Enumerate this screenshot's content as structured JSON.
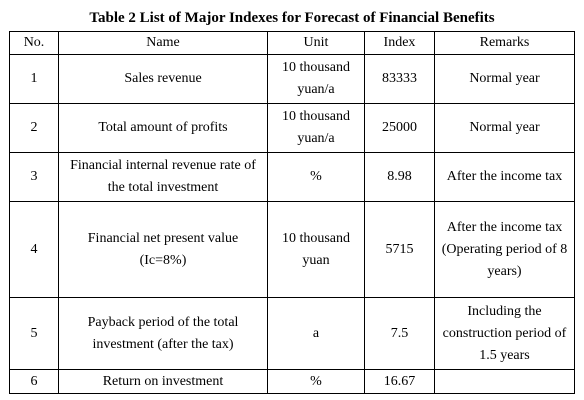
{
  "title": "Table 2 List of Major Indexes for Forecast of Financial Benefits",
  "table": {
    "headers": {
      "no": "No.",
      "name": "Name",
      "unit": "Unit",
      "index": "Index",
      "remarks": "Remarks"
    },
    "rows": [
      {
        "no": "1",
        "name": "Sales revenue",
        "unit": "10 thousand yuan/a",
        "index": "83333",
        "remarks": "Normal year"
      },
      {
        "no": "2",
        "name": "Total amount of profits",
        "unit": "10 thousand yuan/a",
        "index": "25000",
        "remarks": "Normal year"
      },
      {
        "no": "3",
        "name": "Financial internal revenue rate of the total investment",
        "unit": "%",
        "index": "8.98",
        "remarks": "After the income tax"
      },
      {
        "no": "4",
        "name": "Financial net present value (Ic=8%)",
        "unit": "10 thousand yuan",
        "index": "5715",
        "remarks": "After the income tax (Operating period of 8 years)"
      },
      {
        "no": "5",
        "name": "Payback period of the total investment (after the tax)",
        "unit": "a",
        "index": "7.5",
        "remarks": "Including the construction period of 1.5 years"
      },
      {
        "no": "6",
        "name": "Return on investment",
        "unit": "%",
        "index": "16.67",
        "remarks": ""
      }
    ]
  }
}
